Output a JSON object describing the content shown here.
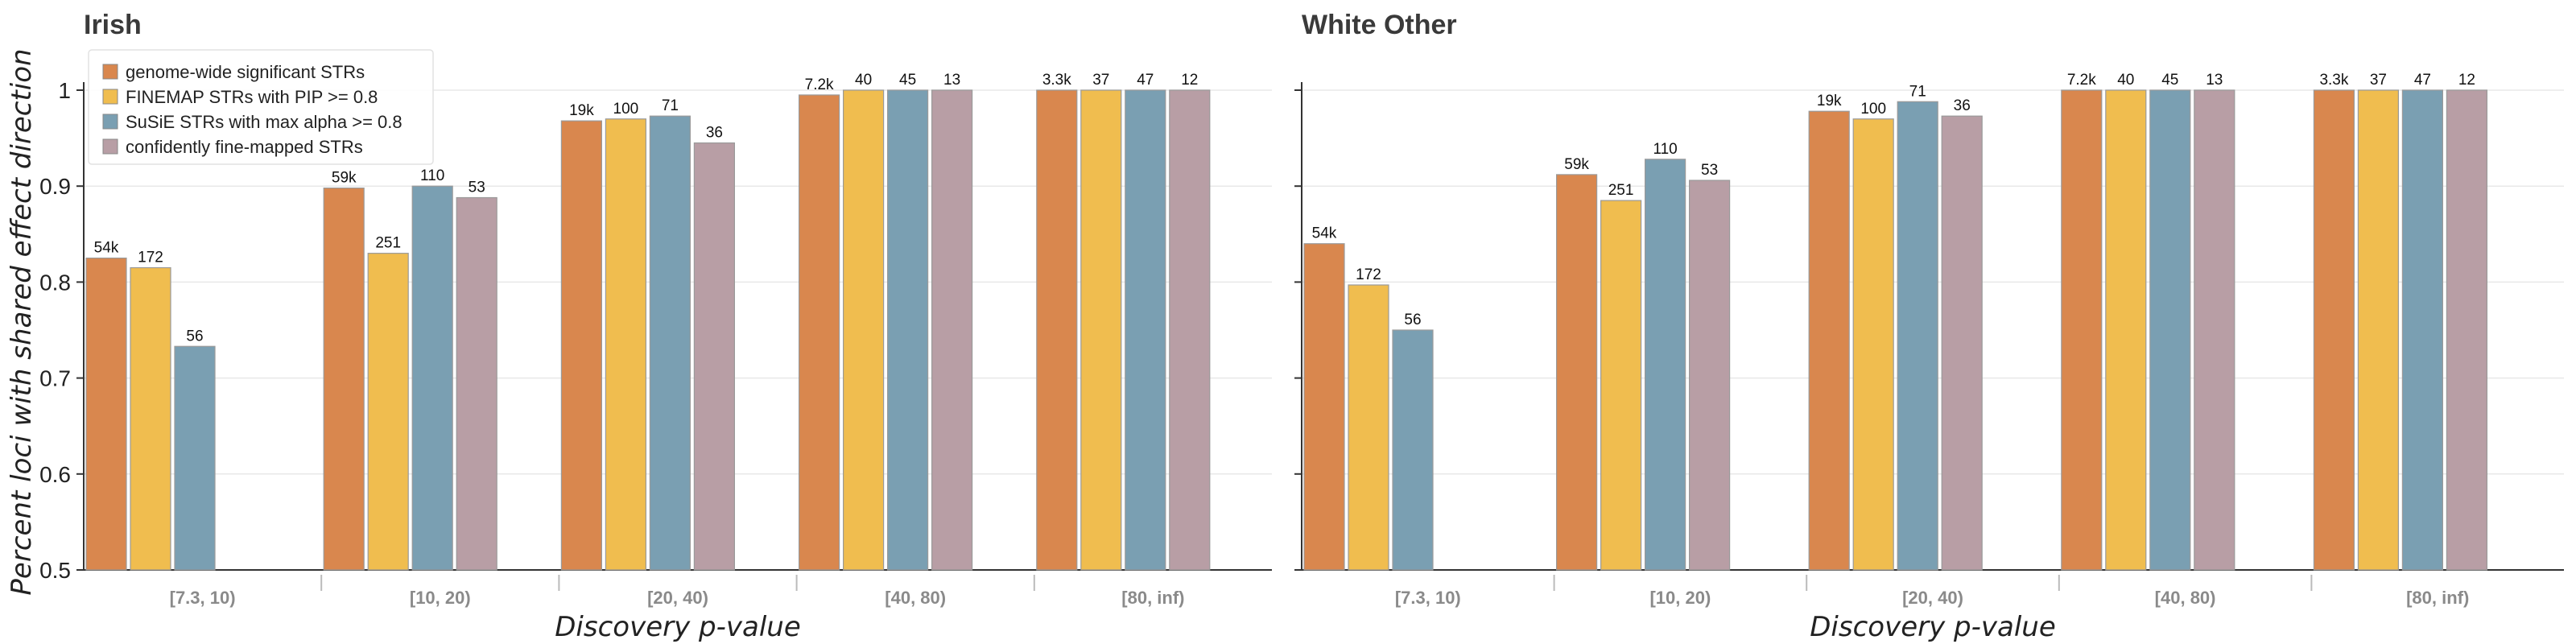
{
  "ylabel": "Percent loci with shared effect direction",
  "colors": [
    "#d9874e",
    "#f0bd4f",
    "#7a9fb2",
    "#b89ea5"
  ],
  "legend": [
    "genome-wide significant STRs",
    "FINEMAP STRs with PIP >= 0.8",
    "SuSiE STRs with max alpha >= 0.8",
    "confidently fine-mapped STRs"
  ],
  "chart_data": [
    {
      "type": "bar",
      "title": "Irish",
      "xlabel": "Discovery p-value",
      "ylabel": "Percent loci with shared effect direction",
      "categories": [
        "[7.3, 10)",
        "[10, 20)",
        "[20, 40)",
        "[40, 80)",
        "[80, inf)"
      ],
      "ylim": [
        0.5,
        1.0
      ],
      "yticks": [
        "0.5",
        "0.6",
        "0.7",
        "0.8",
        "0.9",
        "1"
      ],
      "grid": true,
      "legend_position": "top-left",
      "series": [
        {
          "name": "genome-wide significant STRs",
          "values": [
            0.825,
            0.898,
            0.968,
            0.995,
            1.0
          ],
          "labels": [
            "54k",
            "59k",
            "19k",
            "7.2k",
            "3.3k"
          ]
        },
        {
          "name": "FINEMAP STRs with PIP >= 0.8",
          "values": [
            0.815,
            0.83,
            0.97,
            1.0,
            1.0
          ],
          "labels": [
            "172",
            "251",
            "100",
            "40",
            "37"
          ]
        },
        {
          "name": "SuSiE STRs with max alpha >= 0.8",
          "values": [
            0.733,
            0.9,
            0.973,
            1.0,
            1.0
          ],
          "labels": [
            "56",
            "110",
            "71",
            "45",
            "47"
          ]
        },
        {
          "name": "confidently fine-mapped STRs",
          "values": [
            null,
            0.888,
            0.945,
            1.0,
            1.0
          ],
          "labels": [
            "",
            "53",
            "36",
            "13",
            "12"
          ]
        }
      ]
    },
    {
      "type": "bar",
      "title": "White Other",
      "xlabel": "Discovery p-value",
      "categories": [
        "[7.3, 10)",
        "[10, 20)",
        "[20, 40)",
        "[40, 80)",
        "[80, inf)"
      ],
      "ylim": [
        0.5,
        1.0
      ],
      "grid": true,
      "series": [
        {
          "name": "genome-wide significant STRs",
          "values": [
            0.84,
            0.912,
            0.978,
            1.0,
            1.0
          ],
          "labels": [
            "54k",
            "59k",
            "19k",
            "7.2k",
            "3.3k"
          ]
        },
        {
          "name": "FINEMAP STRs with PIP >= 0.8",
          "values": [
            0.797,
            0.885,
            0.97,
            1.0,
            1.0
          ],
          "labels": [
            "172",
            "251",
            "100",
            "40",
            "37"
          ]
        },
        {
          "name": "SuSiE STRs with max alpha >= 0.8",
          "values": [
            0.75,
            0.928,
            0.988,
            1.0,
            1.0
          ],
          "labels": [
            "56",
            "110",
            "71",
            "45",
            "47"
          ]
        },
        {
          "name": "confidently fine-mapped STRs",
          "values": [
            null,
            0.906,
            0.973,
            1.0,
            1.0
          ],
          "labels": [
            "",
            "53",
            "36",
            "13",
            "12"
          ]
        }
      ]
    }
  ]
}
